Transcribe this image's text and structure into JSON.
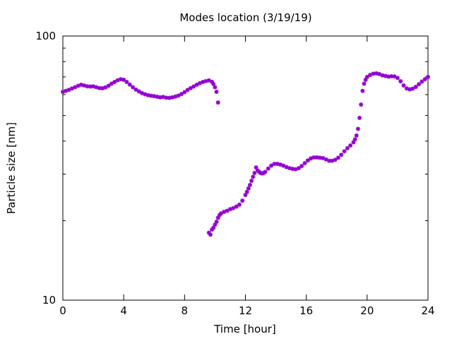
{
  "chart_data": {
    "type": "scatter",
    "title": "Modes location (3/19/19)",
    "xlabel": "Time [hour]",
    "ylabel": "Particle size [nm]",
    "xlim": [
      0,
      24
    ],
    "ylim": [
      10,
      100
    ],
    "yscale": "log",
    "grid": false,
    "legend": "none",
    "x_ticks": [
      0,
      4,
      8,
      12,
      16,
      20,
      24
    ],
    "x_tick_labels": [
      "0",
      "4",
      "8",
      "12",
      "16",
      "20",
      "24"
    ],
    "y_tick_labels": [
      "10",
      "100"
    ],
    "marker_color": "#9400d3",
    "series": [
      {
        "points": [
          [
            0.0,
            61.5
          ],
          [
            0.2,
            62.0
          ],
          [
            0.4,
            62.6
          ],
          [
            0.6,
            63.3
          ],
          [
            0.8,
            64.0
          ],
          [
            1.0,
            64.8
          ],
          [
            1.2,
            65.4
          ],
          [
            1.4,
            65.0
          ],
          [
            1.6,
            64.5
          ],
          [
            1.8,
            64.4
          ],
          [
            2.0,
            64.5
          ],
          [
            2.2,
            64.0
          ],
          [
            2.4,
            63.5
          ],
          [
            2.6,
            63.4
          ],
          [
            2.8,
            63.9
          ],
          [
            3.0,
            64.8
          ],
          [
            3.2,
            66.0
          ],
          [
            3.4,
            67.0
          ],
          [
            3.6,
            68.0
          ],
          [
            3.8,
            68.6
          ],
          [
            4.0,
            68.3
          ],
          [
            4.2,
            67.0
          ],
          [
            4.4,
            65.5
          ],
          [
            4.6,
            64.0
          ],
          [
            4.8,
            62.7
          ],
          [
            5.0,
            61.7
          ],
          [
            5.2,
            60.8
          ],
          [
            5.4,
            60.2
          ],
          [
            5.6,
            59.7
          ],
          [
            5.8,
            59.4
          ],
          [
            6.0,
            59.2
          ],
          [
            6.2,
            58.9
          ],
          [
            6.4,
            58.6
          ],
          [
            6.6,
            58.8
          ],
          [
            6.8,
            58.4
          ],
          [
            7.0,
            58.3
          ],
          [
            7.2,
            58.6
          ],
          [
            7.4,
            59.0
          ],
          [
            7.6,
            59.5
          ],
          [
            7.8,
            60.3
          ],
          [
            8.0,
            61.3
          ],
          [
            8.2,
            62.5
          ],
          [
            8.4,
            63.5
          ],
          [
            8.6,
            64.4
          ],
          [
            8.8,
            65.4
          ],
          [
            9.0,
            66.3
          ],
          [
            9.2,
            67.0
          ],
          [
            9.4,
            67.5
          ],
          [
            9.6,
            67.9
          ],
          [
            9.8,
            67.1
          ],
          [
            9.9,
            65.8
          ],
          [
            10.0,
            64.0
          ],
          [
            10.1,
            61.5
          ],
          [
            10.2,
            56.0
          ]
        ]
      },
      {
        "points": [
          [
            9.6,
            18.0
          ],
          [
            9.7,
            17.7
          ],
          [
            9.8,
            18.5
          ],
          [
            9.9,
            18.8
          ],
          [
            10.0,
            19.3
          ],
          [
            10.1,
            19.8
          ],
          [
            10.2,
            20.5
          ],
          [
            10.3,
            21.0
          ],
          [
            10.4,
            21.3
          ],
          [
            10.6,
            21.6
          ],
          [
            10.8,
            21.8
          ],
          [
            11.0,
            22.1
          ],
          [
            11.2,
            22.3
          ],
          [
            11.4,
            22.6
          ],
          [
            11.6,
            23.0
          ],
          [
            11.8,
            23.8
          ],
          [
            12.0,
            25.0
          ],
          [
            12.1,
            25.7
          ],
          [
            12.2,
            26.5
          ],
          [
            12.3,
            27.3
          ],
          [
            12.4,
            28.3
          ],
          [
            12.5,
            29.3
          ],
          [
            12.6,
            30.3
          ],
          [
            12.7,
            31.8
          ],
          [
            12.8,
            31.0
          ],
          [
            12.9,
            30.6
          ],
          [
            13.0,
            30.3
          ],
          [
            13.1,
            30.2
          ],
          [
            13.2,
            30.3
          ],
          [
            13.3,
            30.6
          ],
          [
            13.5,
            31.5
          ],
          [
            13.7,
            32.3
          ],
          [
            13.9,
            32.8
          ],
          [
            14.1,
            32.8
          ],
          [
            14.3,
            32.6
          ],
          [
            14.5,
            32.3
          ],
          [
            14.7,
            31.9
          ],
          [
            14.9,
            31.6
          ],
          [
            15.1,
            31.4
          ],
          [
            15.3,
            31.3
          ],
          [
            15.5,
            31.6
          ],
          [
            15.7,
            32.2
          ],
          [
            15.9,
            33.0
          ],
          [
            16.1,
            33.8
          ],
          [
            16.3,
            34.4
          ],
          [
            16.5,
            34.7
          ],
          [
            16.7,
            34.7
          ],
          [
            16.9,
            34.6
          ],
          [
            17.1,
            34.5
          ],
          [
            17.3,
            34.1
          ],
          [
            17.5,
            33.7
          ],
          [
            17.7,
            33.7
          ],
          [
            17.9,
            34.0
          ],
          [
            18.1,
            34.6
          ],
          [
            18.3,
            35.5
          ],
          [
            18.5,
            36.6
          ],
          [
            18.7,
            37.6
          ],
          [
            18.9,
            38.5
          ],
          [
            19.1,
            39.6
          ],
          [
            19.2,
            40.6
          ],
          [
            19.3,
            42.0
          ],
          [
            19.4,
            44.5
          ],
          [
            19.5,
            49.0
          ],
          [
            19.6,
            55.0
          ],
          [
            19.7,
            62.0
          ],
          [
            19.8,
            66.0
          ],
          [
            19.9,
            68.3
          ],
          [
            20.0,
            70.0
          ],
          [
            20.2,
            71.2
          ],
          [
            20.4,
            72.0
          ],
          [
            20.6,
            72.2
          ],
          [
            20.8,
            71.8
          ],
          [
            21.0,
            71.0
          ],
          [
            21.2,
            70.6
          ],
          [
            21.4,
            70.2
          ],
          [
            21.6,
            70.4
          ],
          [
            21.8,
            70.3
          ],
          [
            22.0,
            69.4
          ],
          [
            22.2,
            67.4
          ],
          [
            22.4,
            65.0
          ],
          [
            22.6,
            63.3
          ],
          [
            22.8,
            62.8
          ],
          [
            23.0,
            63.2
          ],
          [
            23.2,
            64.2
          ],
          [
            23.4,
            65.7
          ],
          [
            23.6,
            67.2
          ],
          [
            23.8,
            68.6
          ],
          [
            24.0,
            70.0
          ]
        ]
      }
    ]
  }
}
